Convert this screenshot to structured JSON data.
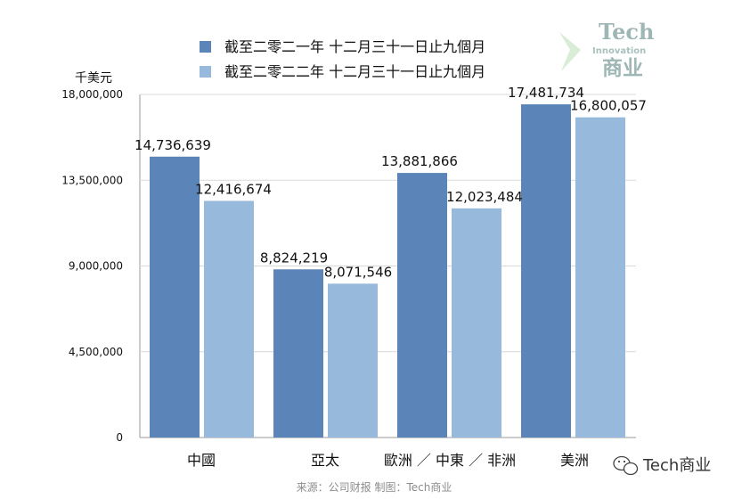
{
  "chart_data": {
    "type": "bar",
    "unit_label": "千美元",
    "categories": [
      "中國",
      "亞太",
      "歐洲 ／ 中東 ／ 非洲",
      "美洲"
    ],
    "series": [
      {
        "name": "截至二零二一年 十二月三十一日止九個月",
        "color": "#5b84b8",
        "values": [
          14736639,
          8824219,
          13881866,
          17481734
        ],
        "labels": [
          "14,736,639",
          "8,824,219",
          "13,881,866",
          "17,481,734"
        ]
      },
      {
        "name": "截至二零二二年 十二月三十一日止九個月",
        "color": "#97b9db",
        "values": [
          12416674,
          8071546,
          12023484,
          16800057
        ],
        "labels": [
          "12,416,674",
          "8,071,546",
          "12,023,484",
          "16,800,057"
        ]
      }
    ],
    "ylim": [
      0,
      18000000
    ],
    "yticks": [
      0,
      4500000,
      9000000,
      13500000,
      18000000
    ],
    "ytick_labels": [
      "0",
      "4,500,000",
      "9,000,000",
      "13,500,000",
      "18,000,000"
    ],
    "grid": true,
    "legend_position": "top"
  },
  "source": "来源：公司财报 制图：Tech商业",
  "watermark": {
    "tech": "Tech",
    "innovation": "Innovation",
    "chinese": "商业",
    "wechat": "Tech商业",
    "wechat_icon": "wechat-icon"
  }
}
